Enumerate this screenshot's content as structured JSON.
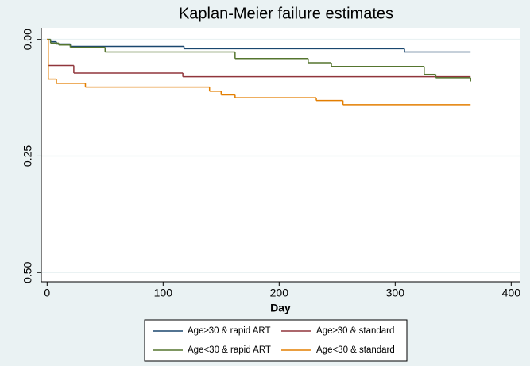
{
  "chart_data": {
    "type": "step",
    "title": "Kaplan-Meier failure estimates",
    "x_label": "Day",
    "xlim": [
      -5,
      408
    ],
    "xticks": [
      0,
      100,
      200,
      300,
      400
    ],
    "ylim": [
      -0.025,
      0.52
    ],
    "y_reversed": true,
    "yticks": [
      {
        "value": 0,
        "label": "0.00"
      },
      {
        "value": 0.25,
        "label": "0.25"
      },
      {
        "value": 0.5,
        "label": "0.50"
      }
    ],
    "grid": true,
    "legend": "bottom",
    "series": [
      {
        "name": "Age≥30 & rapid ART",
        "color": "#1a476f",
        "x": [
          0,
          3,
          8,
          20,
          118,
          308,
          365
        ],
        "values": [
          0,
          0.005,
          0.01,
          0.015,
          0.02,
          0.027,
          0.027
        ]
      },
      {
        "name": "Age≥30 & standard",
        "color": "#90353b",
        "x": [
          0,
          1,
          23,
          117,
          365
        ],
        "values": [
          0,
          0.056,
          0.072,
          0.08,
          0.08
        ]
      },
      {
        "name": "Age<30 & rapid ART",
        "color": "#55752f",
        "x": [
          0,
          3,
          10,
          20,
          50,
          162,
          225,
          245,
          325,
          335,
          365
        ],
        "values": [
          0,
          0.008,
          0.012,
          0.017,
          0.027,
          0.041,
          0.05,
          0.058,
          0.075,
          0.082,
          0.09
        ]
      },
      {
        "name": "Age<30 & standard",
        "color": "#e37e00",
        "x": [
          0,
          1,
          8,
          33,
          140,
          150,
          162,
          232,
          255,
          365
        ],
        "values": [
          0,
          0.085,
          0.094,
          0.102,
          0.111,
          0.119,
          0.125,
          0.131,
          0.14,
          0.14
        ]
      }
    ]
  }
}
